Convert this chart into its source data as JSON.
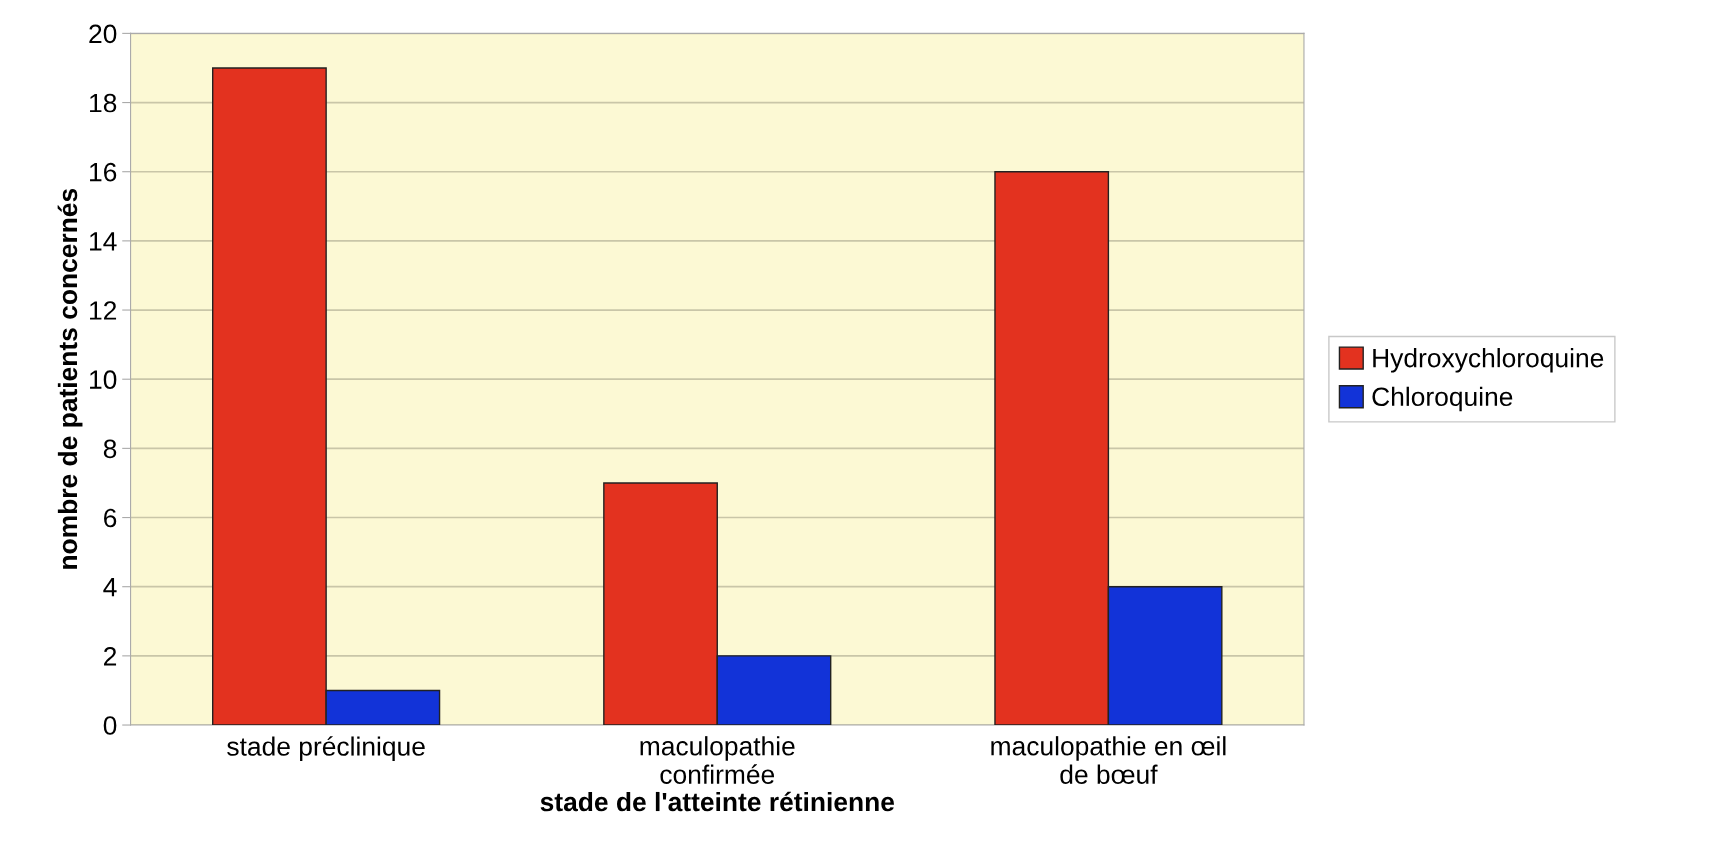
{
  "chart_data": {
    "type": "bar",
    "xlabel": "stade de l'atteinte rétinienne",
    "ylabel": "nombre de patients concernés",
    "categories": [
      "stade préclinique",
      "maculopathie\nconfirmée",
      "maculopathie en œil\nde bœuf"
    ],
    "series": [
      {
        "name": "Hydroxychloroquine",
        "color": "#e3321f",
        "values": [
          19,
          7,
          16
        ]
      },
      {
        "name": "Chloroquine",
        "color": "#1233d8",
        "values": [
          1,
          2,
          4
        ]
      }
    ],
    "ylim": [
      0,
      20
    ],
    "yticks": [
      0,
      2,
      4,
      6,
      8,
      10,
      12,
      14,
      16,
      18,
      20
    ],
    "grid": "y",
    "legend": "right"
  }
}
